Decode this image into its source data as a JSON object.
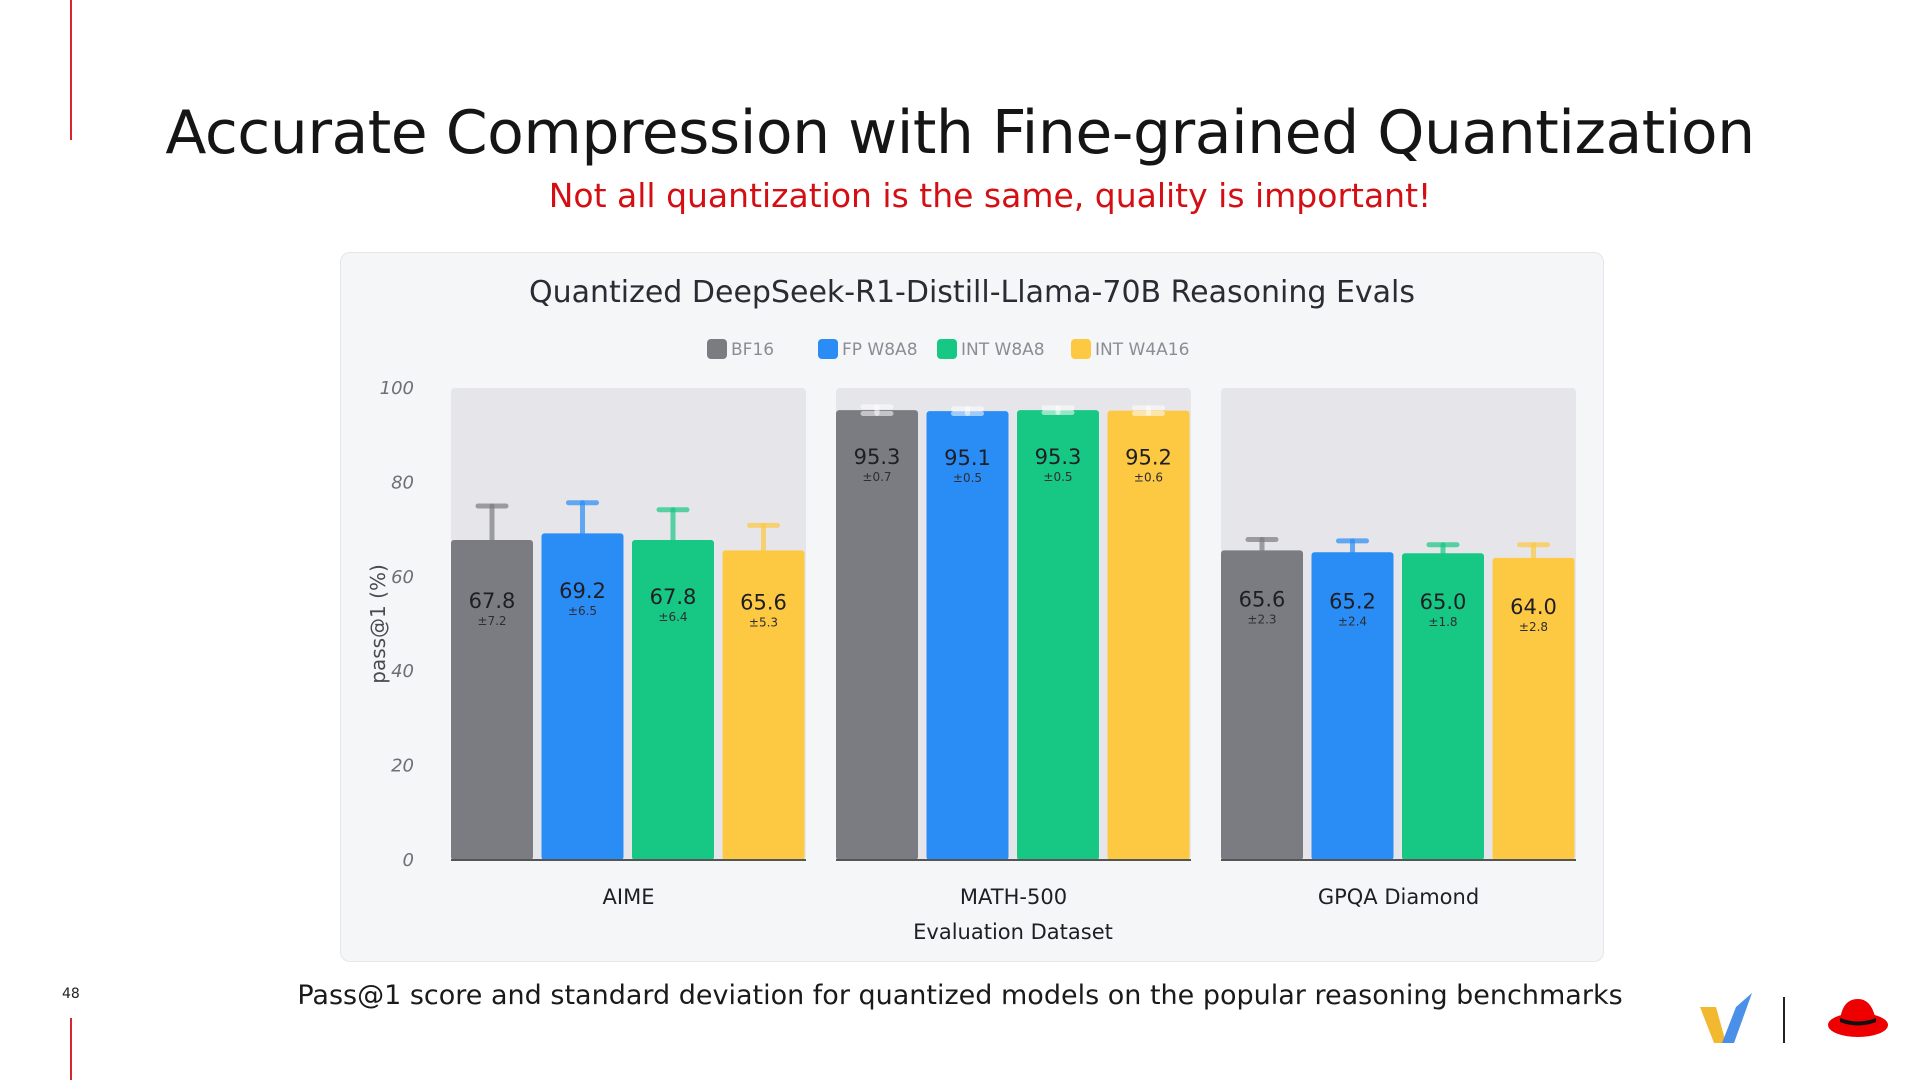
{
  "slide": {
    "title": "Accurate Compression with Fine-grained Quantization",
    "subtitle": "Not all quantization is the same, quality is important!",
    "caption": "Pass@1 score and standard deviation for quantized models on the popular reasoning benchmarks",
    "page_number": "48",
    "accent_color": "#d7262d",
    "subtitle_color": "#d40f14"
  },
  "logos": [
    "vllm-logo-icon",
    "red-hat-logo-icon"
  ],
  "chart_data": {
    "type": "bar",
    "title": "Quantized DeepSeek-R1-Distill-Llama-70B Reasoning Evals",
    "xlabel": "Evaluation Dataset",
    "ylabel": "pass@1 (%)",
    "ylim": [
      0,
      100
    ],
    "yticks": [
      "0",
      "20",
      "40",
      "60",
      "80",
      "100"
    ],
    "legend_position": "top-center",
    "grid": false,
    "categories": [
      "AIME",
      "MATH-500",
      "GPQA Diamond"
    ],
    "series": [
      {
        "name": "BF16",
        "color": "#7b7c82",
        "values": [
          67.8,
          95.3,
          65.6
        ],
        "std": [
          7.2,
          0.7,
          2.3
        ],
        "labels": [
          "67.8",
          "95.3",
          "65.6"
        ],
        "std_labels": [
          "±7.2",
          "±0.7",
          "±2.3"
        ]
      },
      {
        "name": "FP W8A8",
        "color": "#2a8cf5",
        "values": [
          69.2,
          95.1,
          65.2
        ],
        "std": [
          6.5,
          0.5,
          2.4
        ],
        "labels": [
          "69.2",
          "95.1",
          "65.2"
        ],
        "std_labels": [
          "±6.5",
          "±0.5",
          "±2.4"
        ]
      },
      {
        "name": "INT W8A8",
        "color": "#17c784",
        "values": [
          67.8,
          95.3,
          65.0
        ],
        "std": [
          6.4,
          0.5,
          1.8
        ],
        "labels": [
          "67.8",
          "95.3",
          "65.0"
        ],
        "std_labels": [
          "±6.4",
          "±0.5",
          "±1.8"
        ]
      },
      {
        "name": "INT W4A16",
        "color": "#fdc943",
        "values": [
          65.6,
          95.2,
          64.0
        ],
        "std": [
          5.3,
          0.6,
          2.8
        ],
        "labels": [
          "65.6",
          "95.2",
          "64.0"
        ],
        "std_labels": [
          "±5.3",
          "±0.6",
          "±2.8"
        ]
      }
    ]
  }
}
